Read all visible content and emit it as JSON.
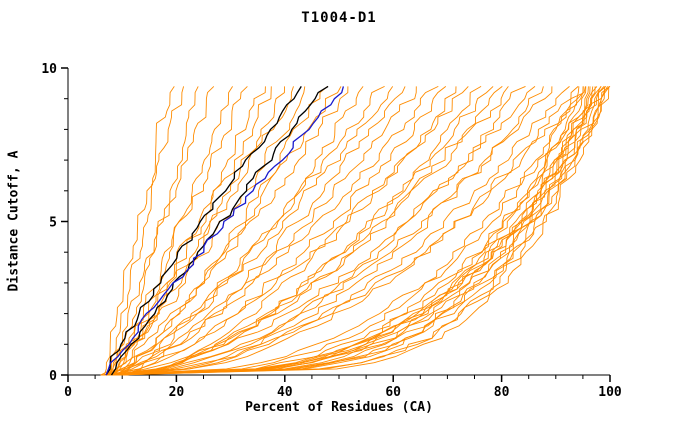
{
  "colors": {
    "orange": "#ff8c00",
    "black": "#000000",
    "blue": "#1a1acd",
    "axis": "#000000"
  },
  "chart_data": {
    "type": "line",
    "title": "T1004-D1",
    "xlabel": "Percent of Residues (CA)",
    "ylabel": "Distance Cutoff, A",
    "xlim": [
      0,
      100
    ],
    "ylim": [
      0,
      10
    ],
    "xticks": [
      0,
      20,
      40,
      60,
      80,
      100
    ],
    "yticks": [
      0,
      5,
      10
    ],
    "x_minor_step": 5,
    "y_minor_step": 1,
    "y_curve_top": 9.5,
    "sample_step": 0.2,
    "jitter": 2.4,
    "legend": "none",
    "grid": false,
    "series": [
      {
        "color": "orange",
        "x_start": 6,
        "x_end": 19,
        "shape": 1.0
      },
      {
        "color": "orange",
        "x_start": 7,
        "x_end": 21,
        "shape": 1.1
      },
      {
        "color": "orange",
        "x_start": 8,
        "x_end": 24,
        "shape": 0.95
      },
      {
        "color": "orange",
        "x_start": 7,
        "x_end": 27,
        "shape": 1.05
      },
      {
        "color": "orange",
        "x_start": 9,
        "x_end": 30,
        "shape": 0.9
      },
      {
        "color": "orange",
        "x_start": 8,
        "x_end": 33,
        "shape": 1.0
      },
      {
        "color": "orange",
        "x_start": 7,
        "x_end": 36,
        "shape": 0.85
      },
      {
        "color": "orange",
        "x_start": 8,
        "x_end": 38,
        "shape": 0.9
      },
      {
        "color": "orange",
        "x_start": 6,
        "x_end": 40,
        "shape": 0.8
      },
      {
        "color": "orange",
        "x_start": 9,
        "x_end": 42,
        "shape": 0.95
      },
      {
        "color": "orange",
        "x_start": 7,
        "x_end": 45,
        "shape": 0.85
      },
      {
        "color": "orange",
        "x_start": 8,
        "x_end": 47,
        "shape": 0.75
      },
      {
        "color": "orange",
        "x_start": 10,
        "x_end": 50,
        "shape": 0.9
      },
      {
        "color": "orange",
        "x_start": 7,
        "x_end": 52,
        "shape": 0.8
      },
      {
        "color": "orange",
        "x_start": 8,
        "x_end": 55,
        "shape": 0.7
      },
      {
        "color": "orange",
        "x_start": 9,
        "x_end": 58,
        "shape": 0.8
      },
      {
        "color": "orange",
        "x_start": 7,
        "x_end": 60,
        "shape": 0.75
      },
      {
        "color": "orange",
        "x_start": 8,
        "x_end": 62,
        "shape": 0.7
      },
      {
        "color": "orange",
        "x_start": 10,
        "x_end": 65,
        "shape": 0.75
      },
      {
        "color": "orange",
        "x_start": 7,
        "x_end": 68,
        "shape": 0.7
      },
      {
        "color": "orange",
        "x_start": 8,
        "x_end": 70,
        "shape": 0.65
      },
      {
        "color": "orange",
        "x_start": 9,
        "x_end": 72,
        "shape": 0.6
      },
      {
        "color": "orange",
        "x_start": 7,
        "x_end": 74,
        "shape": 0.65
      },
      {
        "color": "orange",
        "x_start": 8,
        "x_end": 76,
        "shape": 0.55
      },
      {
        "color": "orange",
        "x_start": 10,
        "x_end": 78,
        "shape": 0.6
      },
      {
        "color": "orange",
        "x_start": 7,
        "x_end": 80,
        "shape": 0.55
      },
      {
        "color": "orange",
        "x_start": 9,
        "x_end": 82,
        "shape": 0.6
      },
      {
        "color": "orange",
        "x_start": 8,
        "x_end": 84,
        "shape": 0.5
      },
      {
        "color": "orange",
        "x_start": 7,
        "x_end": 86,
        "shape": 0.55
      },
      {
        "color": "orange",
        "x_start": 9,
        "x_end": 88,
        "shape": 0.5
      },
      {
        "color": "orange",
        "x_start": 8,
        "x_end": 90,
        "shape": 0.55
      },
      {
        "color": "orange",
        "x_start": 10,
        "x_end": 92,
        "shape": 0.5
      },
      {
        "color": "orange",
        "x_start": 7,
        "x_end": 94,
        "shape": 0.45
      },
      {
        "color": "orange",
        "x_start": 8,
        "x_end": 96,
        "shape": 0.5
      },
      {
        "color": "orange",
        "x_start": 6,
        "x_end": 95,
        "shape": 0.35
      },
      {
        "color": "orange",
        "x_start": 7,
        "x_end": 96,
        "shape": 0.3
      },
      {
        "color": "orange",
        "x_start": 8,
        "x_end": 97,
        "shape": 0.32
      },
      {
        "color": "orange",
        "x_start": 6,
        "x_end": 98,
        "shape": 0.28
      },
      {
        "color": "orange",
        "x_start": 7,
        "x_end": 99,
        "shape": 0.3
      },
      {
        "color": "orange",
        "x_start": 8,
        "x_end": 100,
        "shape": 0.25
      },
      {
        "color": "orange",
        "x_start": 6,
        "x_end": 96,
        "shape": 0.22
      },
      {
        "color": "orange",
        "x_start": 7,
        "x_end": 97,
        "shape": 0.26
      },
      {
        "color": "orange",
        "x_start": 8,
        "x_end": 98,
        "shape": 0.3
      },
      {
        "color": "orange",
        "x_start": 6,
        "x_end": 99,
        "shape": 0.24
      },
      {
        "color": "orange",
        "x_start": 7,
        "x_end": 100,
        "shape": 0.28
      },
      {
        "color": "orange",
        "x_start": 8,
        "x_end": 95,
        "shape": 0.34
      },
      {
        "color": "orange",
        "x_start": 6,
        "x_end": 97,
        "shape": 0.2
      },
      {
        "color": "orange",
        "x_start": 7,
        "x_end": 98,
        "shape": 0.25
      },
      {
        "color": "orange",
        "x_start": 9,
        "x_end": 99,
        "shape": 0.22
      },
      {
        "color": "orange",
        "x_start": 6,
        "x_end": 100,
        "shape": 0.3
      },
      {
        "color": "orange",
        "x_start": 7,
        "x_end": 95,
        "shape": 0.27
      },
      {
        "color": "orange",
        "x_start": 8,
        "x_end": 99,
        "shape": 0.2
      },
      {
        "color": "black",
        "x_start": 7,
        "x_end": 44,
        "shape": 1.15
      },
      {
        "color": "black",
        "x_start": 8,
        "x_end": 48,
        "shape": 1.05
      },
      {
        "color": "blue",
        "x_start": 7,
        "x_end": 52,
        "shape": 1.1
      }
    ]
  }
}
